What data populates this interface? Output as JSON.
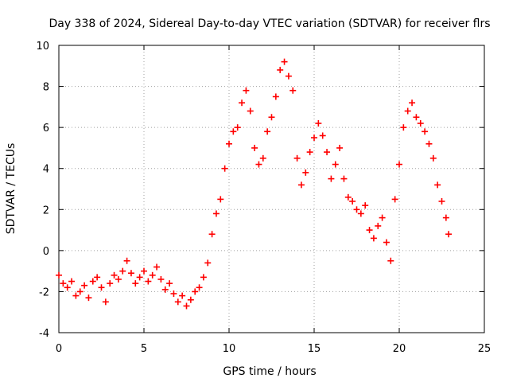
{
  "chart_data": {
    "type": "scatter",
    "title": "Day 338 of 2024, Sidereal Day-to-day VTEC variation (SDTVAR) for receiver flrs",
    "xlabel": "GPS time / hours",
    "ylabel": "SDTVAR / TECUs",
    "xlim": [
      0,
      25
    ],
    "ylim": [
      -4,
      10
    ],
    "xticks": [
      0,
      5,
      10,
      15,
      20,
      25
    ],
    "yticks": [
      -4,
      -2,
      0,
      2,
      4,
      6,
      8,
      10
    ],
    "grid": true,
    "marker": "+",
    "colors": {
      "series": "#ff0000",
      "grid": "#a0a0a0",
      "axis": "#000000"
    },
    "series": [
      {
        "name": "SDTVAR",
        "x": [
          0.0,
          0.25,
          0.5,
          0.75,
          1.0,
          1.25,
          1.5,
          1.75,
          2.0,
          2.25,
          2.5,
          2.75,
          3.0,
          3.25,
          3.5,
          3.75,
          4.0,
          4.25,
          4.5,
          4.75,
          5.0,
          5.25,
          5.5,
          5.75,
          6.0,
          6.25,
          6.5,
          6.75,
          7.0,
          7.25,
          7.5,
          7.75,
          8.0,
          8.25,
          8.5,
          8.75,
          9.0,
          9.25,
          9.5,
          9.75,
          10.0,
          10.25,
          10.5,
          10.75,
          11.0,
          11.25,
          11.5,
          11.75,
          12.0,
          12.25,
          12.5,
          12.75,
          13.0,
          13.25,
          13.5,
          13.75,
          14.0,
          14.25,
          14.5,
          14.75,
          15.0,
          15.25,
          15.5,
          15.75,
          16.0,
          16.25,
          16.5,
          16.75,
          17.0,
          17.25,
          17.5,
          17.75,
          18.0,
          18.25,
          18.5,
          18.75,
          19.0,
          19.25,
          19.5,
          19.75,
          20.0,
          20.25,
          20.5,
          20.75,
          21.0,
          21.25,
          21.5,
          21.75,
          22.0,
          22.25,
          22.5,
          22.75,
          22.9
        ],
        "y": [
          -1.2,
          -1.6,
          -1.8,
          -1.5,
          -2.2,
          -2.0,
          -1.7,
          -2.3,
          -1.5,
          -1.3,
          -1.8,
          -2.5,
          -1.6,
          -1.2,
          -1.4,
          -1.0,
          -0.5,
          -1.1,
          -1.6,
          -1.3,
          -1.0,
          -1.5,
          -1.2,
          -0.8,
          -1.4,
          -1.9,
          -1.6,
          -2.1,
          -2.5,
          -2.2,
          -2.7,
          -2.4,
          -2.0,
          -1.8,
          -1.3,
          -0.6,
          0.8,
          1.8,
          2.5,
          4.0,
          5.2,
          5.8,
          6.0,
          7.2,
          7.8,
          6.8,
          5.0,
          4.2,
          4.5,
          5.8,
          6.5,
          7.5,
          8.8,
          9.2,
          8.5,
          7.8,
          4.5,
          3.2,
          3.8,
          4.8,
          5.5,
          6.2,
          5.6,
          4.8,
          3.5,
          4.2,
          5.0,
          3.5,
          2.6,
          2.4,
          2.0,
          1.8,
          2.2,
          1.0,
          0.6,
          1.2,
          1.6,
          0.4,
          -0.5,
          2.5,
          4.2,
          6.0,
          6.8,
          7.2,
          6.5,
          6.2,
          5.8,
          5.2,
          4.5,
          3.2,
          2.4,
          1.6,
          0.8
        ]
      }
    ]
  }
}
